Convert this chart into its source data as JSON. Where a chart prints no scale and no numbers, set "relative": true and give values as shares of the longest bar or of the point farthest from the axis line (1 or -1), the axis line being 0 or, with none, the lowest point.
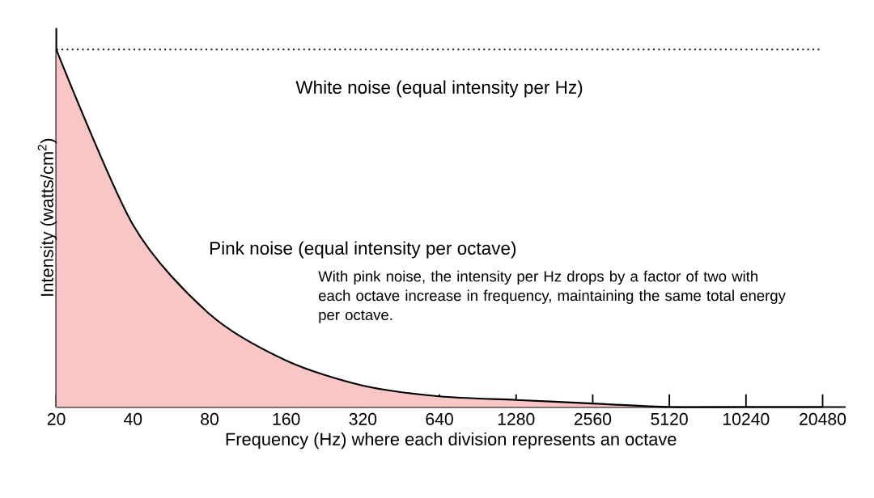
{
  "chart_data": {
    "type": "area",
    "relative": true,
    "xlabel": "Frequency (Hz) where each division represents an octave",
    "ylabel": "Intensity (watts/cm$^{2}$)",
    "categories": [
      "20",
      "40",
      "80",
      "160",
      "320",
      "640",
      "1280",
      "2560",
      "5120",
      "10240",
      "20480"
    ],
    "series": [
      {
        "name": "White  noise (equal intensity per Hz)",
        "type": "line",
        "line_style": "dotted",
        "color": "#1a1a1a",
        "values": [
          1,
          1,
          1,
          1,
          1,
          1,
          1,
          1,
          1,
          1,
          1
        ]
      },
      {
        "name": "Pink noise (equal intensity per octave)",
        "color": "#f9c6c6",
        "values": [
          1,
          0.51,
          0.26,
          0.13,
          0.06,
          0.03,
          0.02,
          0.01,
          0,
          0,
          0
        ]
      }
    ],
    "annotations": [
      "With pink noise, the intensity per Hz drops by a factor of two with each octave increase in frequency, maintaining the same total energy per octave."
    ]
  }
}
